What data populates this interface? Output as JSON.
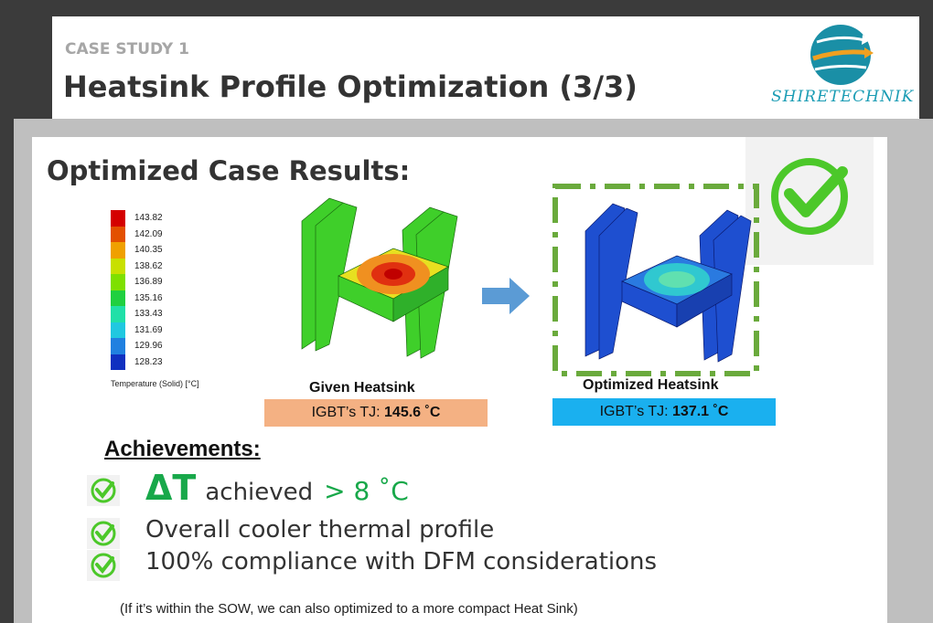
{
  "header": {
    "label": "CASE STUDY 1",
    "title": "Heatsink Profile Optimization (3/3)",
    "logo": "SHIRETECHNIK"
  },
  "slide": {
    "heading": "Optimized Case Results:",
    "legend": {
      "ticks": [
        "143.82",
        "142.09",
        "140.35",
        "138.62",
        "136.89",
        "135.16",
        "133.43",
        "131.69",
        "129.96",
        "128.23"
      ],
      "caption": "Temperature (Solid) [°C]"
    },
    "given": {
      "caption": "Given Heatsink",
      "tj_label": "IGBT’s TJ:",
      "tj_value": "145.6 ˚C"
    },
    "optimized": {
      "caption": "Optimized Heatsink",
      "tj_label": "IGBT’s TJ:",
      "tj_value": "137.1 ˚C"
    },
    "achievements": {
      "title": "Achievements:",
      "items": [
        {
          "symbol": "ΔT",
          "text": "achieved",
          "highlight": "> 8 ˚C"
        },
        {
          "text": "Overall cooler thermal profile"
        },
        {
          "text": "100% compliance with DFM considerations"
        }
      ]
    },
    "footnote": "(If it’s within the SOW, we can also optimized to a more compact Heat Sink)"
  }
}
